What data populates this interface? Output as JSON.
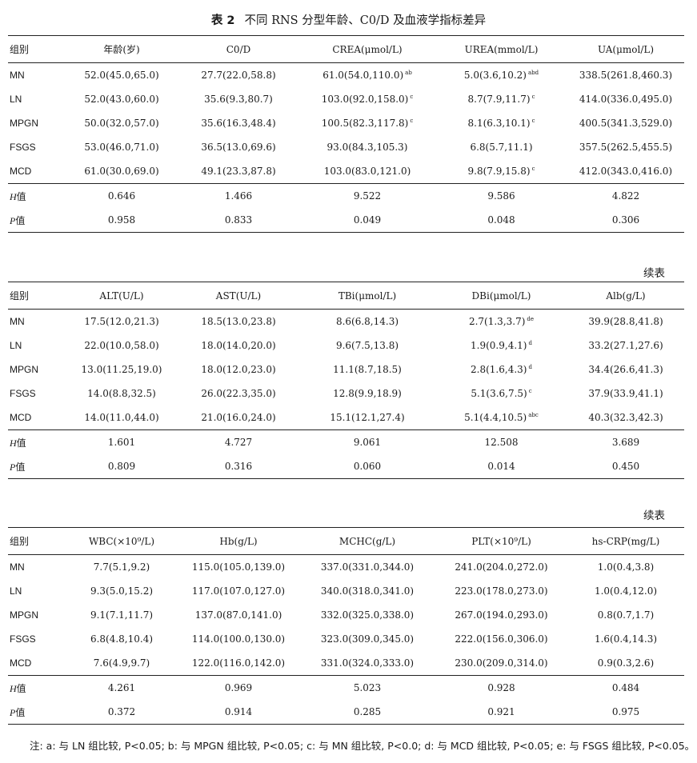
{
  "title": {
    "label": "表 2",
    "text": "不同 RNS 分型年龄、C0/D 及血液学指标差异"
  },
  "continued_label": "续表",
  "tables": [
    {
      "headers": [
        "组别",
        "年龄(岁)",
        "C0/D",
        "CREA(μmol/L)",
        "UREA(mmol/L)",
        "UA(μmol/L)"
      ],
      "rows": [
        {
          "group": "MN",
          "cells": [
            {
              "v": "52.0(45.0,65.0)"
            },
            {
              "v": "27.7(22.0,58.8)"
            },
            {
              "v": "61.0(54.0,110.0)",
              "s": "ab"
            },
            {
              "v": "5.0(3.6,10.2)",
              "s": "abd"
            },
            {
              "v": "338.5(261.8,460.3)"
            }
          ]
        },
        {
          "group": "LN",
          "cells": [
            {
              "v": "52.0(43.0,60.0)"
            },
            {
              "v": "35.6(9.3,80.7)"
            },
            {
              "v": "103.0(92.0,158.0)",
              "s": "c"
            },
            {
              "v": "8.7(7.9,11.7)",
              "s": "c"
            },
            {
              "v": "414.0(336.0,495.0)"
            }
          ]
        },
        {
          "group": "MPGN",
          "cells": [
            {
              "v": "50.0(32.0,57.0)"
            },
            {
              "v": "35.6(16.3,48.4)"
            },
            {
              "v": "100.5(82.3,117.8)",
              "s": "c"
            },
            {
              "v": "8.1(6.3,10.1)",
              "s": "c"
            },
            {
              "v": "400.5(341.3,529.0)"
            }
          ]
        },
        {
          "group": "FSGS",
          "cells": [
            {
              "v": "53.0(46.0,71.0)"
            },
            {
              "v": "36.5(13.0,69.6)"
            },
            {
              "v": "93.0(84.3,105.3)"
            },
            {
              "v": "6.8(5.7,11.1)"
            },
            {
              "v": "357.5(262.5,455.5)"
            }
          ]
        },
        {
          "group": "MCD",
          "cells": [
            {
              "v": "61.0(30.0,69.0)"
            },
            {
              "v": "49.1(23.3,87.8)"
            },
            {
              "v": "103.0(83.0,121.0)"
            },
            {
              "v": "9.8(7.9,15.8)",
              "s": "c"
            },
            {
              "v": "412.0(343.0,416.0)"
            }
          ]
        }
      ],
      "h_row": [
        "0.646",
        "1.466",
        "9.522",
        "9.586",
        "4.822"
      ],
      "p_row": [
        "0.958",
        "0.833",
        "0.049",
        "0.048",
        "0.306"
      ]
    },
    {
      "headers": [
        "组别",
        "ALT(U/L)",
        "AST(U/L)",
        "TBi(μmol/L)",
        "DBi(μmol/L)",
        "Alb(g/L)"
      ],
      "rows": [
        {
          "group": "MN",
          "cells": [
            {
              "v": "17.5(12.0,21.3)"
            },
            {
              "v": "18.5(13.0,23.8)"
            },
            {
              "v": "8.6(6.8,14.3)"
            },
            {
              "v": "2.7(1.3,3.7)",
              "s": "de"
            },
            {
              "v": "39.9(28.8,41.8)"
            }
          ]
        },
        {
          "group": "LN",
          "cells": [
            {
              "v": "22.0(10.0,58.0)"
            },
            {
              "v": "18.0(14.0,20.0)"
            },
            {
              "v": "9.6(7.5,13.8)"
            },
            {
              "v": "1.9(0.9,4.1)",
              "s": "d"
            },
            {
              "v": "33.2(27.1,27.6)"
            }
          ]
        },
        {
          "group": "MPGN",
          "cells": [
            {
              "v": "13.0(11.25,19.0)"
            },
            {
              "v": "18.0(12.0,23.0)"
            },
            {
              "v": "11.1(8.7,18.5)"
            },
            {
              "v": "2.8(1.6,4.3)",
              "s": "d"
            },
            {
              "v": "34.4(26.6,41.3)"
            }
          ]
        },
        {
          "group": "FSGS",
          "cells": [
            {
              "v": "14.0(8.8,32.5)"
            },
            {
              "v": "26.0(22.3,35.0)"
            },
            {
              "v": "12.8(9.9,18.9)"
            },
            {
              "v": "5.1(3.6,7.5)",
              "s": "c"
            },
            {
              "v": "37.9(33.9,41.1)"
            }
          ]
        },
        {
          "group": "MCD",
          "cells": [
            {
              "v": "14.0(11.0,44.0)"
            },
            {
              "v": "21.0(16.0,24.0)"
            },
            {
              "v": "15.1(12.1,27.4)"
            },
            {
              "v": "5.1(4.4,10.5)",
              "s": "abc"
            },
            {
              "v": "40.3(32.3,42.3)"
            }
          ]
        }
      ],
      "h_row": [
        "1.601",
        "4.727",
        "9.061",
        "12.508",
        "3.689"
      ],
      "p_row": [
        "0.809",
        "0.316",
        "0.060",
        "0.014",
        "0.450"
      ]
    },
    {
      "headers": [
        "组别",
        "WBC(×10⁹/L)",
        "Hb(g/L)",
        "MCHC(g/L)",
        "PLT(×10⁹/L)",
        "hs-CRP(mg/L)"
      ],
      "rows": [
        {
          "group": "MN",
          "cells": [
            {
              "v": "7.7(5.1,9.2)"
            },
            {
              "v": "115.0(105.0,139.0)"
            },
            {
              "v": "337.0(331.0,344.0)"
            },
            {
              "v": "241.0(204.0,272.0)"
            },
            {
              "v": "1.0(0.4,3.8)"
            }
          ]
        },
        {
          "group": "LN",
          "cells": [
            {
              "v": "9.3(5.0,15.2)"
            },
            {
              "v": "117.0(107.0,127.0)"
            },
            {
              "v": "340.0(318.0,341.0)"
            },
            {
              "v": "223.0(178.0,273.0)"
            },
            {
              "v": "1.0(0.4,12.0)"
            }
          ]
        },
        {
          "group": "MPGN",
          "cells": [
            {
              "v": "9.1(7.1,11.7)"
            },
            {
              "v": "137.0(87.0,141.0)"
            },
            {
              "v": "332.0(325.0,338.0)"
            },
            {
              "v": "267.0(194.0,293.0)"
            },
            {
              "v": "0.8(0.7,1.7)"
            }
          ]
        },
        {
          "group": "FSGS",
          "cells": [
            {
              "v": "6.8(4.8,10.4)"
            },
            {
              "v": "114.0(100.0,130.0)"
            },
            {
              "v": "323.0(309.0,345.0)"
            },
            {
              "v": "222.0(156.0,306.0)"
            },
            {
              "v": "1.6(0.4,14.3)"
            }
          ]
        },
        {
          "group": "MCD",
          "cells": [
            {
              "v": "7.6(4.9,9.7)"
            },
            {
              "v": "122.0(116.0,142.0)"
            },
            {
              "v": "331.0(324.0,333.0)"
            },
            {
              "v": "230.0(209.0,314.0)"
            },
            {
              "v": "0.9(0.3,2.6)"
            }
          ]
        }
      ],
      "h_row": [
        "4.261",
        "0.969",
        "5.023",
        "0.928",
        "0.484"
      ],
      "p_row": [
        "0.372",
        "0.914",
        "0.285",
        "0.921",
        "0.975"
      ]
    }
  ],
  "stat_labels": {
    "h": "值",
    "h_letter": "H",
    "p": "值",
    "p_letter": "P"
  },
  "note": "注: a: 与 LN 组比较, P<0.05; b: 与 MPGN 组比较, P<0.05; c: 与 MN 组比较, P<0.0; d: 与 MCD 组比较, P<0.05; e: 与 FSGS 组比较, P<0.05。"
}
